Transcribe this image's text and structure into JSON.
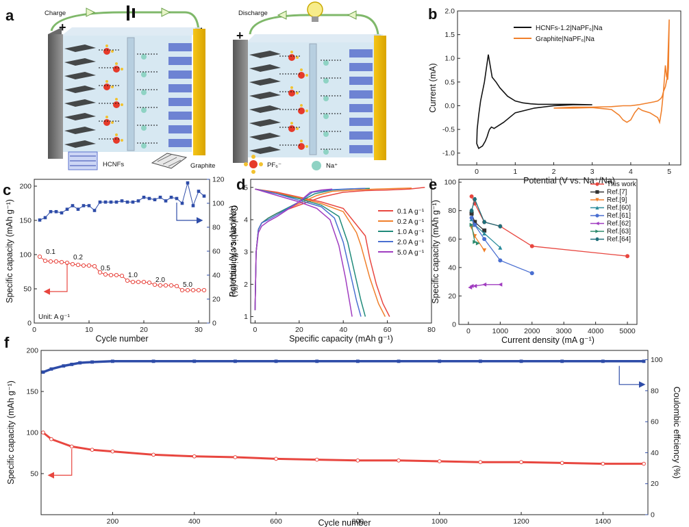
{
  "figure": {
    "panel_labels": {
      "a": "a",
      "b": "b",
      "c": "c",
      "d": "d",
      "e": "e",
      "f": "f"
    },
    "schematic": {
      "charge_label": "Charge",
      "discharge_label": "Discharge",
      "plus": "+",
      "minus": "−",
      "legend_hcnf": "HCNFs",
      "legend_graphite": "Graphite",
      "legend_pf6": "PF₆⁻",
      "legend_na": "Na⁺"
    }
  },
  "chart_data": [
    {
      "id": "b",
      "type": "line",
      "xlabel": "Potential (V vs. Na⁺/Na)",
      "ylabel": "Current (mA)",
      "xlim": [
        -0.5,
        5.3
      ],
      "ylim": [
        -1.25,
        2.0
      ],
      "xticks": [
        0,
        1,
        2,
        3,
        4,
        5
      ],
      "yticks": [
        -1.0,
        -0.5,
        0.0,
        0.5,
        1.0,
        1.5,
        2.0
      ],
      "legend_position": "top-left",
      "series": [
        {
          "name": "HCNFs-1.2|NaPF₆|Na",
          "color": "#111111",
          "x": [
            3.0,
            2.5,
            2.0,
            1.5,
            1.0,
            0.7,
            0.45,
            0.38,
            0.33,
            0.3,
            0.27,
            0.22,
            0.15,
            0.05,
            0.0,
            0.01,
            0.05,
            0.1,
            0.2,
            0.3,
            0.4,
            0.5,
            0.6,
            0.8,
            1.0,
            1.2,
            1.4,
            1.6,
            2.0,
            2.5,
            3.0
          ],
          "y": [
            0.02,
            0.02,
            0.0,
            -0.05,
            -0.15,
            -0.35,
            -0.48,
            -0.45,
            -0.5,
            -0.57,
            -0.65,
            -0.75,
            -0.85,
            -0.9,
            -0.8,
            -0.5,
            -0.2,
            0.1,
            0.5,
            1.08,
            0.6,
            0.5,
            0.38,
            0.2,
            0.1,
            0.06,
            0.04,
            0.03,
            0.03,
            0.03,
            0.02
          ]
        },
        {
          "name": "Graphite|NaPF₆|Na",
          "color": "#f07f2a",
          "x": [
            2.0,
            2.5,
            3.0,
            3.5,
            3.7,
            3.8,
            3.9,
            4.0,
            4.1,
            4.2,
            4.3,
            4.5,
            4.7,
            4.75,
            4.8,
            4.85,
            4.9,
            4.93,
            4.96,
            4.98,
            5.0,
            4.95,
            4.9,
            4.85,
            4.82,
            4.78,
            4.7,
            4.6,
            4.4,
            4.2,
            4.0,
            3.8,
            3.5,
            3.0,
            2.5,
            2.0
          ],
          "y": [
            -0.05,
            -0.05,
            -0.04,
            -0.08,
            -0.2,
            -0.3,
            -0.35,
            -0.3,
            -0.15,
            -0.05,
            -0.1,
            -0.15,
            -0.25,
            -0.35,
            -0.1,
            0.3,
            0.85,
            0.62,
            0.55,
            0.8,
            1.82,
            0.6,
            0.4,
            0.3,
            0.2,
            0.15,
            0.1,
            0.08,
            0.05,
            0.02,
            0.0,
            0.0,
            -0.02,
            -0.03,
            -0.03,
            -0.05
          ]
        }
      ]
    },
    {
      "id": "c",
      "type": "scatter",
      "xlabel": "Cycle number",
      "ylabel": "Specific capacity (mAh g⁻¹)",
      "ylabel2": "Coulombic effciency (%)",
      "xlim": [
        0,
        32
      ],
      "ylim": [
        0,
        210
      ],
      "y2lim": [
        0,
        120
      ],
      "xticks": [
        0,
        10,
        20,
        30
      ],
      "yticks": [
        0,
        50,
        100,
        150,
        200
      ],
      "y2ticks": [
        0,
        20,
        40,
        60,
        80,
        100,
        120
      ],
      "unit_note": "Unit: A g⁻¹",
      "rate_labels": [
        {
          "text": "0.1",
          "x": 3,
          "y": 101
        },
        {
          "text": "0.2",
          "x": 8,
          "y": 93
        },
        {
          "text": "0.5",
          "x": 13,
          "y": 77
        },
        {
          "text": "1.0",
          "x": 18,
          "y": 67
        },
        {
          "text": "2.0",
          "x": 23,
          "y": 60
        },
        {
          "text": "5.0",
          "x": 28,
          "y": 53
        }
      ],
      "series": [
        {
          "name": "capacity",
          "color": "#e8463f",
          "axis": "left",
          "x": [
            1,
            2,
            3,
            4,
            5,
            6,
            7,
            8,
            9,
            10,
            11,
            12,
            13,
            14,
            15,
            16,
            17,
            18,
            19,
            20,
            21,
            22,
            23,
            24,
            25,
            26,
            27,
            28,
            29,
            30,
            31
          ],
          "y": [
            97,
            91,
            90,
            90,
            89,
            88,
            86,
            85,
            84,
            84,
            83,
            74,
            71,
            70,
            70,
            69,
            62,
            60,
            60,
            60,
            59,
            56,
            55,
            55,
            55,
            54,
            48,
            48,
            48,
            48,
            48
          ]
        },
        {
          "name": "coulombic efficiency",
          "color": "#2e4ca8",
          "axis": "right",
          "x": [
            1,
            2,
            3,
            4,
            5,
            6,
            7,
            8,
            9,
            10,
            11,
            12,
            13,
            14,
            15,
            16,
            17,
            18,
            19,
            20,
            21,
            22,
            23,
            24,
            25,
            26,
            27,
            28,
            29,
            30,
            31
          ],
          "y": [
            86,
            88,
            93,
            93,
            92,
            95,
            98,
            95,
            98,
            98,
            94,
            101,
            101,
            101,
            101,
            102,
            101,
            101,
            102,
            105,
            104,
            103,
            105,
            102,
            105,
            104,
            100,
            117,
            98,
            110,
            106
          ]
        }
      ]
    },
    {
      "id": "d",
      "type": "line",
      "xlabel": "Specific capacity (mAh g⁻¹)",
      "ylabel": "Potential (V vs. Na⁺/Na)",
      "xlim": [
        -2,
        80
      ],
      "ylim": [
        0.8,
        5.25
      ],
      "xticks": [
        0,
        20,
        40,
        60,
        80
      ],
      "yticks": [
        1,
        2,
        3,
        4,
        5
      ],
      "legend_position": "middle-right",
      "series": [
        {
          "name": "0.1 A g⁻¹",
          "color": "#e8463f",
          "charge_x": [
            0,
            0.5,
            1.5,
            3,
            6,
            10,
            20,
            30,
            40,
            50,
            60,
            70,
            77
          ],
          "charge_y": [
            1.2,
            3.0,
            3.7,
            3.9,
            4.05,
            4.2,
            4.45,
            4.7,
            4.85,
            4.9,
            4.92,
            4.95,
            5.0
          ],
          "discharge_x": [
            0,
            10,
            20,
            30,
            40,
            50,
            52,
            55,
            58,
            61
          ],
          "discharge_y": [
            4.95,
            4.85,
            4.7,
            4.55,
            4.35,
            3.5,
            2.8,
            2.0,
            1.4,
            1.0
          ]
        },
        {
          "name": "0.2 A g⁻¹",
          "color": "#f07f2a",
          "charge_x": [
            0,
            0.5,
            1.5,
            3,
            6,
            10,
            20,
            28,
            35,
            45,
            55,
            65,
            71
          ],
          "charge_y": [
            1.2,
            3.0,
            3.7,
            3.9,
            4.05,
            4.2,
            4.5,
            4.75,
            4.88,
            4.92,
            4.95,
            4.97,
            4.98
          ],
          "discharge_x": [
            0,
            10,
            20,
            30,
            40,
            46,
            48,
            52,
            56,
            59
          ],
          "discharge_y": [
            4.95,
            4.82,
            4.68,
            4.5,
            4.25,
            3.6,
            3.2,
            2.2,
            1.4,
            1.0
          ]
        },
        {
          "name": "1.0 A g⁻¹",
          "color": "#1f8a7a",
          "charge_x": [
            0,
            0.5,
            1.5,
            3,
            6,
            10,
            20,
            27,
            35,
            45,
            52
          ],
          "charge_y": [
            1.2,
            3.0,
            3.7,
            3.9,
            4.05,
            4.2,
            4.55,
            4.8,
            4.92,
            4.96,
            4.97
          ],
          "discharge_x": [
            0,
            10,
            20,
            30,
            38,
            42,
            45,
            48,
            50
          ],
          "discharge_y": [
            4.95,
            4.8,
            4.65,
            4.45,
            4.1,
            3.3,
            2.4,
            1.5,
            1.0
          ]
        },
        {
          "name": "2.0 A g⁻¹",
          "color": "#4a6fd1",
          "charge_x": [
            0,
            0.5,
            1.5,
            3,
            6,
            10,
            20,
            26,
            35,
            45,
            50
          ],
          "charge_y": [
            1.2,
            3.0,
            3.7,
            3.9,
            4.0,
            4.15,
            4.55,
            4.85,
            4.93,
            4.96,
            4.97
          ],
          "discharge_x": [
            0,
            10,
            20,
            30,
            36,
            40,
            43,
            46,
            48
          ],
          "discharge_y": [
            4.95,
            4.8,
            4.6,
            4.4,
            4.05,
            3.3,
            2.4,
            1.5,
            1.0
          ]
        },
        {
          "name": "5.0 A g⁻¹",
          "color": "#a03cc0",
          "charge_x": [
            0,
            0.5,
            1.5,
            3,
            6,
            10,
            20,
            25,
            30,
            35
          ],
          "charge_y": [
            1.2,
            3.0,
            3.6,
            3.8,
            3.95,
            4.1,
            4.55,
            4.85,
            4.92,
            4.95
          ],
          "discharge_x": [
            0,
            10,
            20,
            28,
            34,
            38,
            41,
            43,
            44
          ],
          "discharge_y": [
            4.95,
            4.75,
            4.55,
            4.35,
            4.0,
            3.2,
            2.2,
            1.4,
            1.0
          ]
        }
      ]
    },
    {
      "id": "e",
      "type": "line",
      "xlabel": "Current density (mA g⁻¹)",
      "ylabel": "Specific capacity (mAh g⁻¹)",
      "xlim": [
        -300,
        5300
      ],
      "ylim": [
        0,
        102
      ],
      "xticks": [
        0,
        1000,
        2000,
        3000,
        4000,
        5000
      ],
      "yticks": [
        0,
        20,
        40,
        60,
        80,
        100
      ],
      "legend_position": "top-right",
      "series": [
        {
          "name": "This work",
          "color": "#e8463f",
          "marker": "circle",
          "x": [
            100,
            200,
            500,
            1000,
            2000,
            5000
          ],
          "y": [
            90,
            85,
            72,
            69,
            55,
            48
          ]
        },
        {
          "name": "Ref.[7]",
          "color": "#333333",
          "marker": "square",
          "x": [
            100,
            200,
            500
          ],
          "y": [
            78,
            72,
            66
          ]
        },
        {
          "name": "Ref.[9]",
          "color": "#f07f2a",
          "marker": "triangle-down",
          "x": [
            100,
            200,
            500
          ],
          "y": [
            68,
            62,
            52
          ]
        },
        {
          "name": "Ref.[60]",
          "color": "#2a8c9c",
          "marker": "tri",
          "x": [
            100,
            200,
            500,
            1000
          ],
          "y": [
            74,
            70,
            64,
            54
          ]
        },
        {
          "name": "Ref.[61]",
          "color": "#4a6fd1",
          "marker": "circle",
          "x": [
            100,
            200,
            500,
            1000,
            2000
          ],
          "y": [
            75,
            70,
            60,
            45,
            36
          ]
        },
        {
          "name": "Ref.[62]",
          "color": "#a03cc0",
          "marker": "triangle-left",
          "x": [
            50,
            100,
            200,
            500,
            1000
          ],
          "y": [
            26,
            27,
            27,
            28,
            28
          ]
        },
        {
          "name": "Ref.[63]",
          "color": "#2e8b6e",
          "marker": "triangle-right",
          "x": [
            100,
            200,
            300
          ],
          "y": [
            70,
            58,
            57
          ]
        },
        {
          "name": "Ref.[64]",
          "color": "#1f6f7a",
          "marker": "hexagon",
          "x": [
            100,
            200,
            500,
            1000
          ],
          "y": [
            80,
            88,
            72,
            69
          ]
        }
      ]
    },
    {
      "id": "f",
      "type": "scatter",
      "xlabel": "Cycle number",
      "ylabel": "Specific capacity (mAh g⁻¹)",
      "ylabel2": "Coulombic effciency (%)",
      "xlim": [
        25,
        1510
      ],
      "ylim": [
        0,
        200
      ],
      "y2lim": [
        0,
        106
      ],
      "xticks": [
        200,
        400,
        600,
        800,
        1000,
        1200,
        1400
      ],
      "yticks": [
        50,
        100,
        150,
        200
      ],
      "y2ticks": [
        0,
        20,
        40,
        60,
        80,
        100
      ],
      "series": [
        {
          "name": "capacity",
          "color": "#e8463f",
          "axis": "left",
          "x": [
            30,
            50,
            100,
            150,
            200,
            300,
            400,
            500,
            600,
            700,
            800,
            900,
            1000,
            1100,
            1200,
            1300,
            1400,
            1500
          ],
          "y": [
            100,
            92,
            83,
            79,
            77,
            73,
            71,
            70,
            68,
            67,
            66,
            66,
            65,
            64,
            64,
            63,
            62,
            62
          ]
        },
        {
          "name": "coulombic efficiency",
          "color": "#2e4ca8",
          "axis": "right",
          "x": [
            30,
            50,
            80,
            100,
            120,
            150,
            200,
            300,
            400,
            500,
            600,
            700,
            800,
            900,
            1000,
            1100,
            1200,
            1300,
            1400,
            1500
          ],
          "y": [
            92,
            94,
            96,
            97,
            98,
            98.5,
            99,
            99,
            99,
            99,
            99,
            99,
            99,
            99,
            99,
            99,
            99,
            99,
            99,
            99
          ]
        }
      ]
    }
  ]
}
